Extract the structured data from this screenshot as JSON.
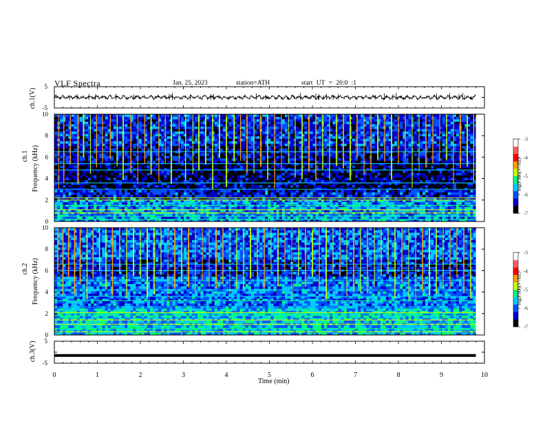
{
  "header": {
    "title": "VLF Spectra",
    "date": "Jan. 25, 2023",
    "station": "station=ATH",
    "start": "start UT = 20:0 :1"
  },
  "panels": {
    "ch1_wave": {
      "ylabel": "ch.1(V)",
      "yticks": [
        "5",
        "-5"
      ],
      "ylim": [
        -5,
        5
      ]
    },
    "ch1_spec": {
      "ylabel_top": "ch.1",
      "ylabel": "Frequency (kHz)",
      "yticks": [
        "10",
        "8",
        "6",
        "4",
        "2",
        "0"
      ],
      "ylim": [
        0,
        10
      ]
    },
    "ch2_spec": {
      "ylabel_top": "ch.2",
      "ylabel": "Frequency (kHz)",
      "yticks": [
        "10",
        "8",
        "6",
        "4",
        "2",
        "0"
      ],
      "ylim": [
        0,
        10
      ]
    },
    "ch3_wave": {
      "ylabel": "ch.3(V)",
      "yticks": [
        "5",
        "-5"
      ],
      "ylim": [
        -5,
        5
      ]
    }
  },
  "xaxis": {
    "label": "Time (min)",
    "ticks": [
      "0",
      "1",
      "2",
      "3",
      "4",
      "5",
      "6",
      "7",
      "8",
      "9",
      "10"
    ],
    "xlim": [
      0,
      10
    ]
  },
  "colorbar": {
    "ticks": [
      "-3",
      "-4",
      "-5",
      "-6",
      "-7"
    ],
    "label": "log(PSD)(V²/Hz)",
    "range": [
      -7,
      -3
    ],
    "colors": [
      "#000000",
      "#0000c8",
      "#0050ff",
      "#00c8ff",
      "#00ff80",
      "#c8ff00",
      "#ffa000",
      "#ff0000",
      "#ff6060",
      "#ffffff"
    ]
  },
  "chart_data": [
    {
      "type": "line",
      "title": "VLF Spectra",
      "xlabel": "Time (min)",
      "ylabel": "ch.1(V)",
      "xlim": [
        0,
        10
      ],
      "ylim": [
        -5,
        5
      ],
      "series": [
        {
          "x_end": 9.8,
          "mean": 0,
          "amplitude": 1
        }
      ]
    },
    {
      "type": "heatmap",
      "xlabel": "Time (min)",
      "ylabel": "Frequency (kHz)",
      "xlim": [
        0,
        10
      ],
      "ylim": [
        0,
        10
      ],
      "x_end": 9.8,
      "colorbar_label": "log(PSD)(V²/Hz)",
      "colorbar_range": [
        -7,
        -3
      ],
      "bands": [
        {
          "f_range": [
            7,
            10
          ],
          "level": -6.2
        },
        {
          "f_range": [
            5.6,
            7
          ],
          "level": -6.4
        },
        {
          "f_range": [
            3,
            5.6
          ],
          "level": -6.6
        },
        {
          "f_range": [
            2,
            3
          ],
          "level": -6.3
        },
        {
          "f_range": [
            0,
            2
          ],
          "level": -5.8
        }
      ],
      "lines_khz": [
        0.2,
        0.5,
        0.8,
        1.1,
        1.5,
        2.0,
        2.2,
        3.0,
        3.6,
        4.8,
        5.4,
        6.5
      ],
      "spikes_min": [
        0.1,
        0.22,
        0.37,
        0.55,
        0.68,
        0.84,
        0.98,
        1.12,
        1.3,
        1.46,
        1.6,
        1.78,
        1.94,
        2.1,
        2.25,
        2.43,
        2.58,
        2.72,
        2.9,
        3.05,
        3.22,
        3.36,
        3.52,
        3.68,
        3.84,
        4.0,
        4.18,
        4.33,
        4.48,
        4.64,
        4.8,
        4.96,
        5.12,
        5.28,
        5.45,
        5.6,
        5.76,
        5.92,
        6.08,
        6.24,
        6.4,
        6.56,
        6.72,
        6.88,
        7.04,
        7.2,
        7.36,
        7.52,
        7.68,
        7.84,
        8.0,
        8.16,
        8.32,
        8.48,
        8.64,
        8.8,
        8.96,
        9.12,
        9.28,
        9.44,
        9.6,
        9.75
      ]
    },
    {
      "type": "heatmap",
      "xlabel": "Time (min)",
      "ylabel": "Frequency (kHz)",
      "xlim": [
        0,
        10
      ],
      "ylim": [
        0,
        10
      ],
      "x_end": 9.8,
      "colorbar_label": "log(PSD)(V²/Hz)",
      "colorbar_range": [
        -7,
        -3
      ],
      "bands": [
        {
          "f_range": [
            7,
            10
          ],
          "level": -6.0
        },
        {
          "f_range": [
            5.5,
            7
          ],
          "level": -6.3
        },
        {
          "f_range": [
            2.5,
            5.5
          ],
          "level": -5.9
        },
        {
          "f_range": [
            0,
            2.5
          ],
          "level": -5.6
        }
      ],
      "lines_khz": [
        0.3,
        0.6,
        1.0,
        1.4,
        1.8,
        2.0,
        2.1,
        2.6,
        3.2,
        3.6,
        4.2,
        5.1,
        6.0,
        6.6
      ],
      "spikes_min": [
        0.08,
        0.2,
        0.33,
        0.47,
        0.6,
        0.76,
        0.9,
        1.05,
        1.2,
        1.35,
        1.52,
        1.68,
        1.84,
        2.0,
        2.16,
        2.32,
        2.48,
        2.64,
        2.8,
        2.96,
        3.12,
        3.28,
        3.44,
        3.6,
        3.76,
        3.92,
        4.08,
        4.24,
        4.4,
        4.56,
        4.72,
        4.88,
        5.04,
        5.2,
        5.36,
        5.52,
        5.68,
        5.84,
        6.0,
        6.16,
        6.32,
        6.48,
        6.64,
        6.8,
        6.96,
        7.12,
        7.28,
        7.44,
        7.6,
        7.76,
        7.92,
        8.08,
        8.24,
        8.4,
        8.56,
        8.72,
        8.88,
        9.04,
        9.2,
        9.36,
        9.52,
        9.68
      ]
    },
    {
      "type": "line",
      "xlabel": "Time (min)",
      "ylabel": "ch.3(V)",
      "xlim": [
        0,
        10
      ],
      "ylim": [
        -5,
        5
      ],
      "series": [
        {
          "x_end": 9.8,
          "value": -1.5
        }
      ]
    }
  ]
}
